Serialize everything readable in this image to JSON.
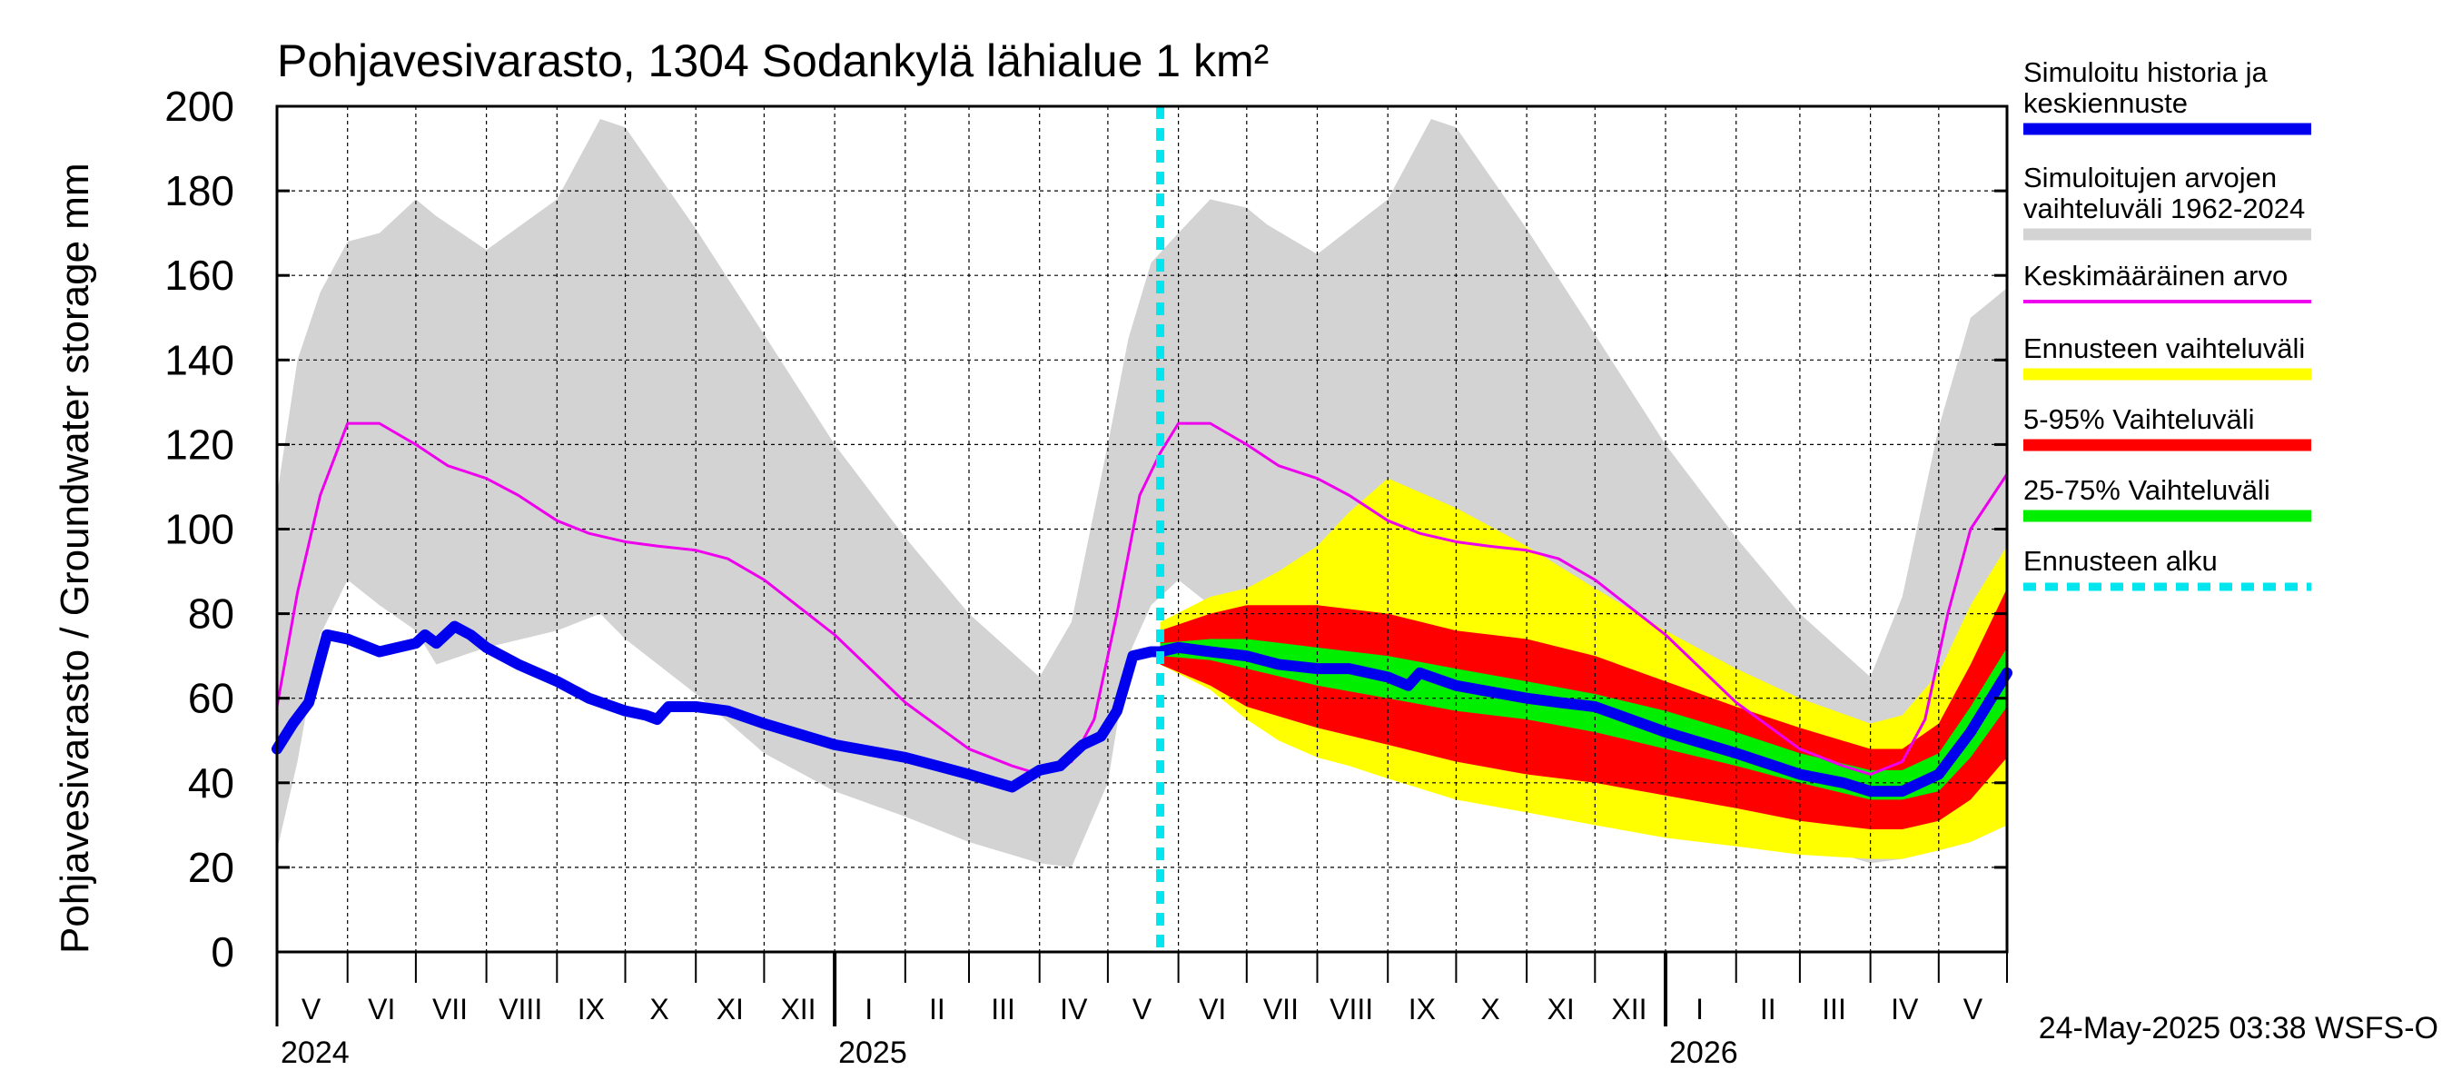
{
  "chart_data": {
    "type": "area",
    "title": "Pohjavesivarasto, 1304 Sodankylä lähialue 1 km²",
    "ylabel": "Pohjavesivarasto / Groundwater storage   mm",
    "ylim": [
      0,
      200
    ],
    "yticks": [
      0,
      20,
      40,
      60,
      80,
      100,
      120,
      140,
      160,
      180,
      200
    ],
    "xlim": [
      "2024-05-01",
      "2026-05-31"
    ],
    "month_labels": [
      {
        "label": "V",
        "date": "2024-05-16"
      },
      {
        "label": "VI",
        "date": "2024-06-16"
      },
      {
        "label": "VII",
        "date": "2024-07-16"
      },
      {
        "label": "VIII",
        "date": "2024-08-16"
      },
      {
        "label": "IX",
        "date": "2024-09-16"
      },
      {
        "label": "X",
        "date": "2024-10-16"
      },
      {
        "label": "XI",
        "date": "2024-11-16"
      },
      {
        "label": "XII",
        "date": "2024-12-16"
      },
      {
        "label": "I",
        "date": "2025-01-16"
      },
      {
        "label": "II",
        "date": "2025-02-15"
      },
      {
        "label": "III",
        "date": "2025-03-16"
      },
      {
        "label": "IV",
        "date": "2025-04-16"
      },
      {
        "label": "V",
        "date": "2025-05-16"
      },
      {
        "label": "VI",
        "date": "2025-06-16"
      },
      {
        "label": "VII",
        "date": "2025-07-16"
      },
      {
        "label": "VIII",
        "date": "2025-08-16"
      },
      {
        "label": "IX",
        "date": "2025-09-16"
      },
      {
        "label": "X",
        "date": "2025-10-16"
      },
      {
        "label": "XI",
        "date": "2025-11-16"
      },
      {
        "label": "XII",
        "date": "2025-12-16"
      },
      {
        "label": "I",
        "date": "2026-01-16"
      },
      {
        "label": "II",
        "date": "2026-02-15"
      },
      {
        "label": "III",
        "date": "2026-03-16"
      },
      {
        "label": "IV",
        "date": "2026-04-16"
      },
      {
        "label": "V",
        "date": "2026-05-16"
      }
    ],
    "year_labels": [
      {
        "label": "2024",
        "date": "2024-05-01"
      },
      {
        "label": "2025",
        "date": "2025-01-01"
      },
      {
        "label": "2026",
        "date": "2026-01-01"
      }
    ],
    "forecast_start": "2025-05-24",
    "series": [
      {
        "name": "Simuloitujen arvojen vaihteluväli 1962-2024",
        "kind": "band",
        "color": "#d3d3d3",
        "x": [
          "2024-05-01",
          "2024-05-10",
          "2024-05-20",
          "2024-06-01",
          "2024-06-15",
          "2024-07-01",
          "2024-07-10",
          "2024-08-01",
          "2024-09-01",
          "2024-09-20",
          "2024-10-01",
          "2024-11-01",
          "2024-12-01",
          "2025-01-01",
          "2025-02-01",
          "2025-03-01",
          "2025-04-01",
          "2025-04-15",
          "2025-05-01",
          "2025-05-10",
          "2025-05-20",
          "2025-06-01",
          "2025-06-15",
          "2025-07-01",
          "2025-07-10",
          "2025-08-01",
          "2025-09-01",
          "2025-09-20",
          "2025-10-01",
          "2025-11-01",
          "2025-12-01",
          "2026-01-01",
          "2026-02-01",
          "2026-03-01",
          "2026-04-01",
          "2026-04-15",
          "2026-05-01",
          "2026-05-15",
          "2026-05-31"
        ],
        "upper": [
          108,
          140,
          156,
          168,
          170,
          178,
          174,
          166,
          178,
          197,
          195,
          171,
          146,
          120,
          98,
          80,
          65,
          78,
          120,
          145,
          163,
          170,
          178,
          176,
          172,
          165,
          178,
          197,
          195,
          171,
          146,
          120,
          98,
          80,
          65,
          84,
          124,
          150,
          157
        ],
        "lower": [
          24,
          45,
          75,
          88,
          82,
          76,
          68,
          72,
          76,
          80,
          74,
          61,
          47,
          38,
          32,
          26,
          21,
          20,
          40,
          70,
          82,
          88,
          82,
          76,
          68,
          72,
          76,
          80,
          74,
          61,
          47,
          38,
          32,
          26,
          21,
          22,
          28,
          34,
          40
        ]
      },
      {
        "name": "Ennusteen vaihteluväli",
        "kind": "band",
        "color": "#ffff00",
        "x": [
          "2025-05-24",
          "2025-06-15",
          "2025-07-01",
          "2025-07-15",
          "2025-08-01",
          "2025-08-15",
          "2025-09-01",
          "2025-10-01",
          "2025-11-01",
          "2025-12-01",
          "2026-01-01",
          "2026-02-01",
          "2026-03-01",
          "2026-04-01",
          "2026-04-15",
          "2026-05-01",
          "2026-05-15",
          "2026-05-31"
        ],
        "upper": [
          78,
          84,
          86,
          90,
          96,
          104,
          112,
          105,
          96,
          86,
          76,
          67,
          60,
          54,
          56,
          66,
          82,
          96
        ],
        "lower": [
          68,
          62,
          55,
          50,
          46,
          44,
          41,
          36,
          33,
          30,
          27,
          25,
          23,
          22,
          22,
          24,
          26,
          30
        ]
      },
      {
        "name": "5-95% Vaihteluväli",
        "kind": "band",
        "color": "#ff0000",
        "x": [
          "2025-05-24",
          "2025-06-15",
          "2025-07-01",
          "2025-08-01",
          "2025-09-01",
          "2025-10-01",
          "2025-11-01",
          "2025-12-01",
          "2026-01-01",
          "2026-02-01",
          "2026-03-01",
          "2026-04-01",
          "2026-04-15",
          "2026-05-01",
          "2026-05-15",
          "2026-05-31"
        ],
        "upper": [
          76,
          80,
          82,
          82,
          80,
          76,
          74,
          70,
          64,
          58,
          53,
          48,
          48,
          54,
          68,
          86
        ],
        "lower": [
          68,
          63,
          58,
          53,
          49,
          45,
          42,
          40,
          37,
          34,
          31,
          29,
          29,
          31,
          36,
          46
        ]
      },
      {
        "name": "25-75% Vaihteluväli",
        "kind": "band",
        "color": "#00ee00",
        "x": [
          "2025-05-24",
          "2025-06-15",
          "2025-07-01",
          "2025-08-01",
          "2025-09-01",
          "2025-10-01",
          "2025-11-01",
          "2025-12-01",
          "2026-01-01",
          "2026-02-01",
          "2026-03-01",
          "2026-04-01",
          "2026-04-15",
          "2026-05-01",
          "2026-05-15",
          "2026-05-31"
        ],
        "upper": [
          73,
          74,
          74,
          72,
          70,
          67,
          64,
          61,
          57,
          52,
          47,
          43,
          43,
          47,
          58,
          72
        ],
        "lower": [
          70,
          69,
          67,
          63,
          60,
          57,
          55,
          52,
          48,
          44,
          40,
          36,
          36,
          38,
          46,
          58
        ]
      },
      {
        "name": "Keskimääräinen arvo",
        "kind": "line",
        "color": "#ee00ee",
        "x": [
          "2024-05-01",
          "2024-05-10",
          "2024-05-20",
          "2024-06-01",
          "2024-06-15",
          "2024-07-01",
          "2024-07-15",
          "2024-08-01",
          "2024-08-15",
          "2024-09-01",
          "2024-09-15",
          "2024-10-01",
          "2024-10-15",
          "2024-11-01",
          "2024-11-15",
          "2024-12-01",
          "2025-01-01",
          "2025-02-01",
          "2025-03-01",
          "2025-03-20",
          "2025-04-01",
          "2025-04-15",
          "2025-04-25",
          "2025-05-05",
          "2025-05-15",
          "2025-05-24",
          "2025-06-01",
          "2025-06-15",
          "2025-07-01",
          "2025-07-15",
          "2025-08-01",
          "2025-08-15",
          "2025-09-01",
          "2025-09-15",
          "2025-10-01",
          "2025-10-15",
          "2025-11-01",
          "2025-11-15",
          "2025-12-01",
          "2026-01-01",
          "2026-02-01",
          "2026-03-01",
          "2026-03-20",
          "2026-04-01",
          "2026-04-15",
          "2026-04-25",
          "2026-05-05",
          "2026-05-15",
          "2026-05-31"
        ],
        "y": [
          58,
          85,
          108,
          125,
          125,
          120,
          115,
          112,
          108,
          102,
          99,
          97,
          96,
          95,
          93,
          88,
          75,
          59,
          48,
          44,
          42,
          45,
          55,
          80,
          108,
          118,
          125,
          125,
          120,
          115,
          112,
          108,
          102,
          99,
          97,
          96,
          95,
          93,
          88,
          75,
          59,
          48,
          44,
          42,
          45,
          55,
          80,
          100,
          113
        ]
      },
      {
        "name": "Simuloitu historia ja keskiennuste",
        "kind": "line",
        "color": "#0000ee",
        "x": [
          "2024-05-01",
          "2024-05-08",
          "2024-05-15",
          "2024-05-23",
          "2024-06-01",
          "2024-06-15",
          "2024-07-01",
          "2024-07-05",
          "2024-07-10",
          "2024-07-18",
          "2024-07-25",
          "2024-08-01",
          "2024-08-15",
          "2024-09-01",
          "2024-09-15",
          "2024-10-01",
          "2024-10-10",
          "2024-10-15",
          "2024-10-20",
          "2024-11-01",
          "2024-11-15",
          "2024-12-01",
          "2025-01-01",
          "2025-02-01",
          "2025-03-01",
          "2025-03-20",
          "2025-04-01",
          "2025-04-10",
          "2025-04-20",
          "2025-04-28",
          "2025-05-05",
          "2025-05-12",
          "2025-05-20",
          "2025-05-24",
          "2025-06-01",
          "2025-06-15",
          "2025-07-01",
          "2025-07-15",
          "2025-08-01",
          "2025-08-15",
          "2025-09-01",
          "2025-09-10",
          "2025-09-15",
          "2025-10-01",
          "2025-11-01",
          "2025-11-15",
          "2025-12-01",
          "2026-01-01",
          "2026-02-01",
          "2026-03-01",
          "2026-03-20",
          "2026-04-01",
          "2026-04-15",
          "2026-05-01",
          "2026-05-15",
          "2026-05-31"
        ],
        "y": [
          48,
          54,
          59,
          75,
          74,
          71,
          73,
          75,
          73,
          77,
          75,
          72,
          68,
          64,
          60,
          57,
          56,
          55,
          58,
          58,
          57,
          54,
          49,
          46,
          42,
          39,
          43,
          44,
          49,
          51,
          57,
          70,
          71,
          71,
          72,
          71,
          70,
          68,
          67,
          67,
          65,
          63,
          66,
          63,
          60,
          59,
          58,
          52,
          47,
          42,
          40,
          38,
          38,
          42,
          52,
          66
        ]
      }
    ],
    "legend": [
      {
        "label": "Simuloitu historia ja keskiennuste",
        "color": "#0000ee",
        "style": "thick"
      },
      {
        "label": "Simuloitujen arvojen vaihteluväli 1962-2024",
        "color": "#d3d3d3",
        "style": "thick"
      },
      {
        "label": "Keskimääräinen arvo",
        "color": "#ee00ee",
        "style": "thin"
      },
      {
        "label": "Ennusteen vaihteluväli",
        "color": "#ffff00",
        "style": "thick"
      },
      {
        "label": "5-95% Vaihteluväli",
        "color": "#ff0000",
        "style": "thick"
      },
      {
        "label": "25-75% Vaihteluväli",
        "color": "#00ee00",
        "style": "thick"
      },
      {
        "label": "Ennusteen alku",
        "color": "#00e5ee",
        "style": "dashed"
      }
    ],
    "footer": "24-May-2025 03:38 WSFS-O"
  }
}
